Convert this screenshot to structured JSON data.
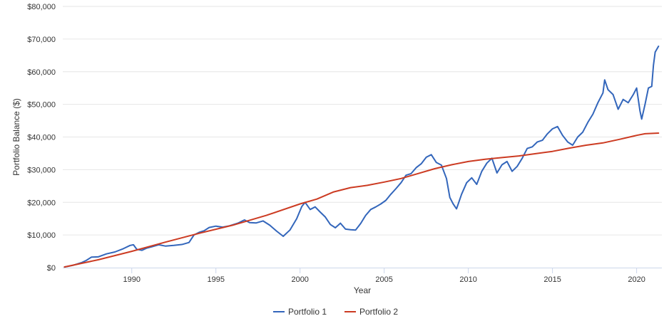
{
  "chart_data": {
    "type": "line",
    "title": "",
    "xlabel": "Year",
    "ylabel": "Portfolio Balance ($)",
    "xlim": [
      1985.9,
      2021.5
    ],
    "ylim": [
      0,
      80000
    ],
    "x_ticks": [
      1990,
      1995,
      2000,
      2005,
      2010,
      2015,
      2020
    ],
    "x_tick_labels": [
      "1990",
      "1995",
      "2000",
      "2005",
      "2010",
      "2015",
      "2020"
    ],
    "y_ticks": [
      0,
      10000,
      20000,
      30000,
      40000,
      50000,
      60000,
      70000,
      80000
    ],
    "y_tick_labels": [
      "$0",
      "$10,000",
      "$20,000",
      "$30,000",
      "$40,000",
      "$50,000",
      "$60,000",
      "$70,000",
      "$80,000"
    ],
    "grid": true,
    "legend_position": "bottom-center",
    "series": [
      {
        "name": "Portfolio 1",
        "color": "#3366bb",
        "points": [
          [
            1986.0,
            200
          ],
          [
            1986.5,
            700
          ],
          [
            1987.0,
            1500
          ],
          [
            1987.3,
            2200
          ],
          [
            1987.6,
            3200
          ],
          [
            1988.0,
            3300
          ],
          [
            1988.5,
            4200
          ],
          [
            1989.0,
            4800
          ],
          [
            1989.5,
            5800
          ],
          [
            1989.9,
            6800
          ],
          [
            1990.1,
            7000
          ],
          [
            1990.3,
            5600
          ],
          [
            1990.6,
            5300
          ],
          [
            1990.9,
            6000
          ],
          [
            1991.2,
            6400
          ],
          [
            1991.6,
            7000
          ],
          [
            1992.0,
            6600
          ],
          [
            1992.5,
            6800
          ],
          [
            1993.0,
            7100
          ],
          [
            1993.4,
            7700
          ],
          [
            1993.7,
            10000
          ],
          [
            1994.0,
            10800
          ],
          [
            1994.3,
            11300
          ],
          [
            1994.6,
            12300
          ],
          [
            1995.0,
            12700
          ],
          [
            1995.4,
            12400
          ],
          [
            1995.8,
            12800
          ],
          [
            1996.3,
            13600
          ],
          [
            1996.7,
            14600
          ],
          [
            1997.0,
            13800
          ],
          [
            1997.4,
            13700
          ],
          [
            1997.8,
            14300
          ],
          [
            1998.2,
            13000
          ],
          [
            1998.6,
            11200
          ],
          [
            1999.0,
            9600
          ],
          [
            1999.4,
            11500
          ],
          [
            1999.8,
            15000
          ],
          [
            2000.1,
            18700
          ],
          [
            2000.3,
            20000
          ],
          [
            2000.6,
            17800
          ],
          [
            2000.9,
            18600
          ],
          [
            2001.2,
            17000
          ],
          [
            2001.5,
            15500
          ],
          [
            2001.8,
            13200
          ],
          [
            2002.1,
            12200
          ],
          [
            2002.4,
            13600
          ],
          [
            2002.7,
            11800
          ],
          [
            2003.0,
            11600
          ],
          [
            2003.3,
            11500
          ],
          [
            2003.6,
            13500
          ],
          [
            2003.9,
            16000
          ],
          [
            2004.2,
            17800
          ],
          [
            2004.5,
            18600
          ],
          [
            2004.8,
            19500
          ],
          [
            2005.1,
            20600
          ],
          [
            2005.4,
            22500
          ],
          [
            2005.7,
            24200
          ],
          [
            2006.0,
            26000
          ],
          [
            2006.3,
            28300
          ],
          [
            2006.6,
            28800
          ],
          [
            2006.9,
            30600
          ],
          [
            2007.2,
            31800
          ],
          [
            2007.5,
            33800
          ],
          [
            2007.8,
            34600
          ],
          [
            2008.1,
            32200
          ],
          [
            2008.4,
            31400
          ],
          [
            2008.7,
            27300
          ],
          [
            2008.9,
            21500
          ],
          [
            2009.1,
            19500
          ],
          [
            2009.3,
            18000
          ],
          [
            2009.6,
            22500
          ],
          [
            2009.9,
            26000
          ],
          [
            2010.2,
            27500
          ],
          [
            2010.5,
            25500
          ],
          [
            2010.8,
            29500
          ],
          [
            2011.1,
            32000
          ],
          [
            2011.4,
            33500
          ],
          [
            2011.7,
            29000
          ],
          [
            2012.0,
            31500
          ],
          [
            2012.3,
            32500
          ],
          [
            2012.6,
            29500
          ],
          [
            2012.9,
            31000
          ],
          [
            2013.2,
            33500
          ],
          [
            2013.5,
            36500
          ],
          [
            2013.8,
            37000
          ],
          [
            2014.1,
            38500
          ],
          [
            2014.4,
            39000
          ],
          [
            2014.7,
            41000
          ],
          [
            2015.0,
            42500
          ],
          [
            2015.3,
            43200
          ],
          [
            2015.6,
            40500
          ],
          [
            2015.9,
            38500
          ],
          [
            2016.2,
            37500
          ],
          [
            2016.5,
            40000
          ],
          [
            2016.8,
            41500
          ],
          [
            2017.1,
            44500
          ],
          [
            2017.4,
            47000
          ],
          [
            2017.7,
            50500
          ],
          [
            2018.0,
            53500
          ],
          [
            2018.1,
            57500
          ],
          [
            2018.3,
            54500
          ],
          [
            2018.6,
            53000
          ],
          [
            2018.9,
            48500
          ],
          [
            2019.2,
            51500
          ],
          [
            2019.5,
            50500
          ],
          [
            2019.8,
            53000
          ],
          [
            2020.0,
            55000
          ],
          [
            2020.2,
            48000
          ],
          [
            2020.3,
            45500
          ],
          [
            2020.5,
            50000
          ],
          [
            2020.7,
            55000
          ],
          [
            2020.9,
            55500
          ],
          [
            2021.0,
            62000
          ],
          [
            2021.1,
            66000
          ],
          [
            2021.3,
            67800
          ]
        ]
      },
      {
        "name": "Portfolio 2",
        "color": "#cc3b22",
        "points": [
          [
            1986.0,
            200
          ],
          [
            1988.0,
            2400
          ],
          [
            1990.0,
            5000
          ],
          [
            1992.0,
            7800
          ],
          [
            1994.0,
            10500
          ],
          [
            1996.0,
            13000
          ],
          [
            1998.0,
            16000
          ],
          [
            2000.0,
            19500
          ],
          [
            2001.0,
            21000
          ],
          [
            2002.0,
            23200
          ],
          [
            2003.0,
            24500
          ],
          [
            2004.0,
            25200
          ],
          [
            2005.0,
            26200
          ],
          [
            2006.0,
            27300
          ],
          [
            2007.0,
            28800
          ],
          [
            2008.0,
            30300
          ],
          [
            2009.0,
            31500
          ],
          [
            2010.0,
            32500
          ],
          [
            2011.0,
            33200
          ],
          [
            2012.0,
            33700
          ],
          [
            2013.0,
            34200
          ],
          [
            2014.0,
            34900
          ],
          [
            2015.0,
            35600
          ],
          [
            2016.0,
            36600
          ],
          [
            2017.0,
            37500
          ],
          [
            2018.0,
            38200
          ],
          [
            2019.0,
            39300
          ],
          [
            2020.0,
            40500
          ],
          [
            2020.5,
            41000
          ],
          [
            2021.3,
            41200
          ]
        ]
      }
    ]
  }
}
